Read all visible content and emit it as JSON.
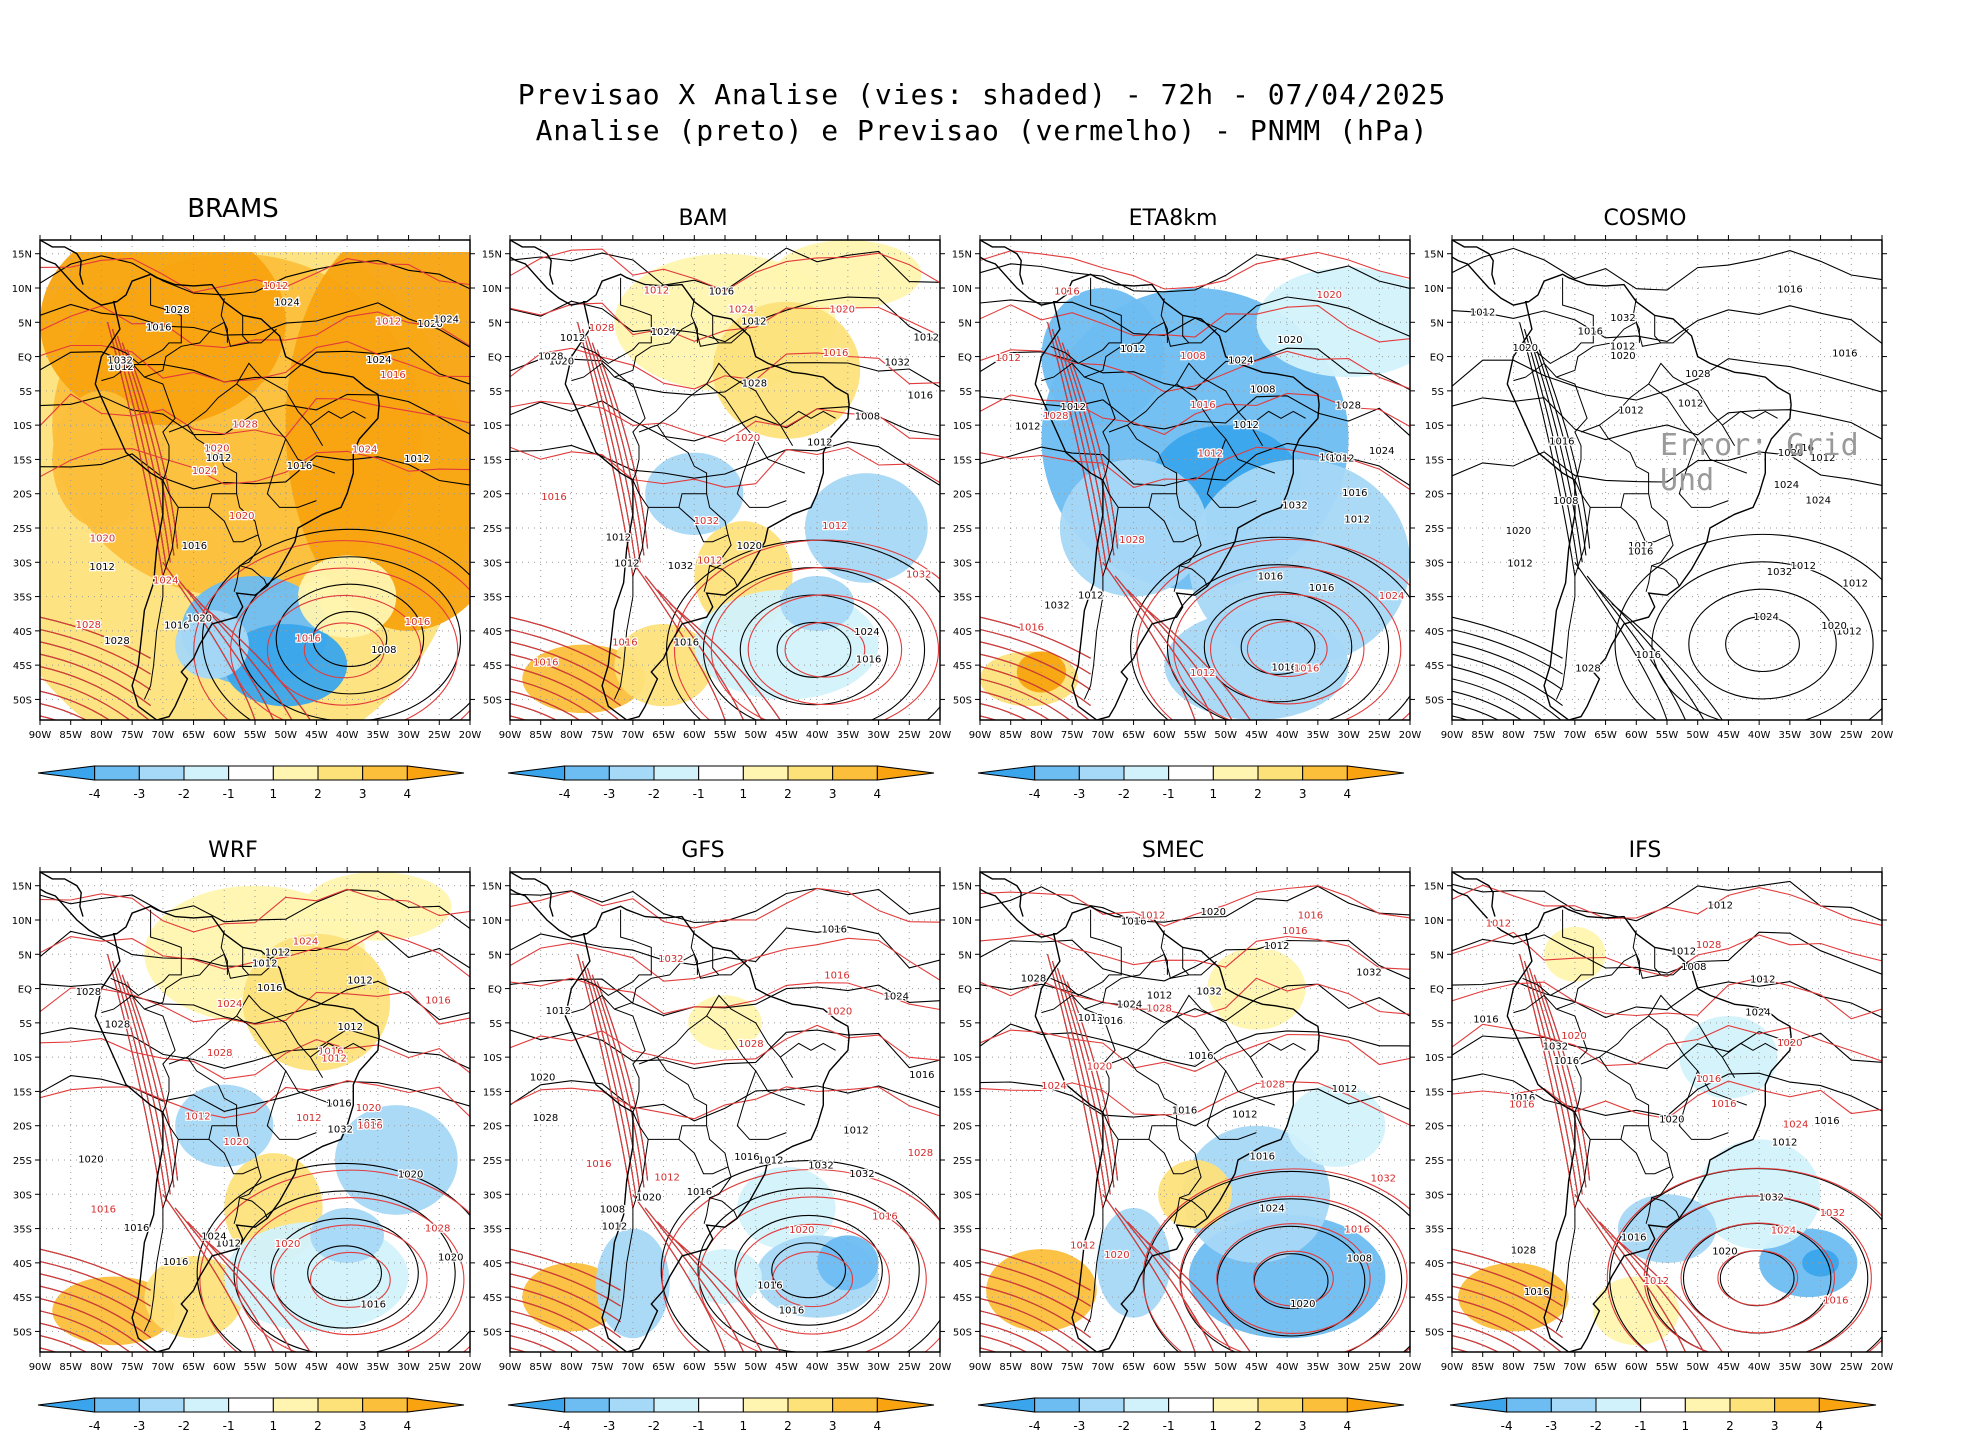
{
  "title_line1": "Previsao X Analise (vies: shaded) - 72h - 07/04/2025",
  "title_line2": "Analise (preto) e Previsao (vermelho) - PNMM (hPa)",
  "lat_labels": [
    "15N",
    "10N",
    "5N",
    "EQ",
    "5S",
    "10S",
    "15S",
    "20S",
    "25S",
    "30S",
    "35S",
    "40S",
    "45S",
    "50S"
  ],
  "lon_labels": [
    "90W",
    "85W",
    "80W",
    "75W",
    "70W",
    "65W",
    "60W",
    "55W",
    "50W",
    "45W",
    "40W",
    "35W",
    "30W",
    "25W",
    "20W"
  ],
  "colorbar": {
    "labels": [
      "-4",
      "-3",
      "-2",
      "-1",
      "1",
      "2",
      "3",
      "4"
    ],
    "colors": [
      "#3aa5ec",
      "#6dbdf2",
      "#a6d8f7",
      "#d2f2fb",
      "#ffffff",
      "#fff5b0",
      "#fde27a",
      "#fbbf3b",
      "#f8a30f"
    ]
  },
  "panels": [
    {
      "name": "BRAMS",
      "bias": "warm",
      "has_forecast": true,
      "has_colorbar": true,
      "error_text": "",
      "black_labels": [
        "1016",
        "1012",
        "1012",
        "1008",
        "1012",
        "1012",
        "1016",
        "1016",
        "1016",
        "1020",
        "1024",
        "1028",
        "1032",
        "1024",
        "1020",
        "1024",
        "1028"
      ],
      "red_labels": [
        "1016",
        "1012",
        "1016",
        "1020",
        "1020",
        "1024",
        "1028",
        "1020",
        "1016",
        "1024",
        "1028",
        "1024",
        "1012"
      ]
    },
    {
      "name": "BAM",
      "bias": "mixed",
      "has_forecast": true,
      "has_colorbar": true,
      "error_text": "",
      "black_labels": [
        "1016",
        "1012",
        "1012",
        "1012",
        "1012",
        "1012",
        "1016",
        "1016",
        "1020",
        "1024",
        "1024",
        "1028",
        "1032",
        "1032",
        "1028",
        "1016",
        "1020",
        "1008",
        "1012"
      ],
      "red_labels": [
        "1016",
        "1012",
        "1012",
        "1016",
        "1012",
        "1016",
        "1016",
        "1020",
        "1020",
        "1028",
        "1032",
        "1032",
        "1024"
      ]
    },
    {
      "name": "ETA8km",
      "bias": "cool",
      "has_forecast": true,
      "has_colorbar": true,
      "error_text": "",
      "black_labels": [
        "1016",
        "1012",
        "1012",
        "1012",
        "1012",
        "1012",
        "1012",
        "1016",
        "1016",
        "1020",
        "1016",
        "1020",
        "1024",
        "1028",
        "1032",
        "1032",
        "1024",
        "1012",
        "1008"
      ],
      "red_labels": [
        "1008",
        "1012",
        "1012",
        "1016",
        "1016",
        "1012",
        "1016",
        "1020",
        "1016",
        "1024",
        "1028",
        "1028"
      ]
    },
    {
      "name": "COSMO",
      "bias": "none",
      "has_forecast": false,
      "has_colorbar": false,
      "error_text": "Error: Grid Und",
      "black_labels": [
        "1012",
        "1012",
        "1012",
        "1012",
        "1016",
        "1012",
        "1012",
        "1012",
        "1012",
        "1020",
        "1016",
        "1020",
        "1012",
        "1016",
        "1016",
        "1016",
        "1020",
        "1024",
        "1016",
        "1020",
        "1024",
        "1028",
        "1032",
        "1032",
        "1024",
        "1016",
        "1012",
        "1008",
        "1020",
        "1028"
      ],
      "red_labels": []
    },
    {
      "name": "WRF",
      "bias": "mixed",
      "has_forecast": true,
      "has_colorbar": true,
      "error_text": "",
      "black_labels": [
        "1016",
        "1012",
        "1012",
        "1012",
        "1016",
        "1012",
        "1012",
        "1020",
        "1016",
        "1016",
        "1020",
        "1024",
        "1028",
        "1032",
        "1028",
        "1032",
        "1016",
        "1020"
      ],
      "red_labels": [
        "1016",
        "1012",
        "1016",
        "1012",
        "1020",
        "1016",
        "1020",
        "1024",
        "1028",
        "1028",
        "1024",
        "1020",
        "1016",
        "1012"
      ]
    },
    {
      "name": "GFS",
      "bias": "light",
      "has_forecast": true,
      "has_colorbar": true,
      "error_text": "",
      "black_labels": [
        "1016",
        "1012",
        "1012",
        "1012",
        "1016",
        "1012",
        "1016",
        "1016",
        "1020",
        "1024",
        "1028",
        "1016",
        "1020",
        "1032",
        "1032",
        "1016",
        "1008"
      ],
      "red_labels": [
        "1016",
        "1012",
        "1016",
        "1016",
        "1020",
        "1020",
        "1028",
        "1032",
        "1028"
      ]
    },
    {
      "name": "SMEC",
      "bias": "mixed-cool",
      "has_forecast": true,
      "has_colorbar": true,
      "error_text": "",
      "black_labels": [
        "1016",
        "1012",
        "1012",
        "1012",
        "1016",
        "1012",
        "1016",
        "1016",
        "1020",
        "1024",
        "1028",
        "1032",
        "1032",
        "1024",
        "1020",
        "1016",
        "1012",
        "1008"
      ],
      "red_labels": [
        "1016",
        "1012",
        "1012",
        "1016",
        "1016",
        "1020",
        "1024",
        "1028",
        "1032",
        "1028",
        "1020"
      ]
    },
    {
      "name": "IFS",
      "bias": "light-cool",
      "has_forecast": true,
      "has_colorbar": true,
      "error_text": "",
      "black_labels": [
        "1016",
        "1012",
        "1012",
        "1012",
        "1016",
        "1012",
        "1016",
        "1016",
        "1020",
        "1024",
        "1028",
        "1032",
        "1032",
        "1020",
        "1016",
        "1008",
        "1016"
      ],
      "red_labels": [
        "1016",
        "1012",
        "1016",
        "1016",
        "1020",
        "1024",
        "1028",
        "1032",
        "1024",
        "1020",
        "1016",
        "1012"
      ]
    }
  ]
}
